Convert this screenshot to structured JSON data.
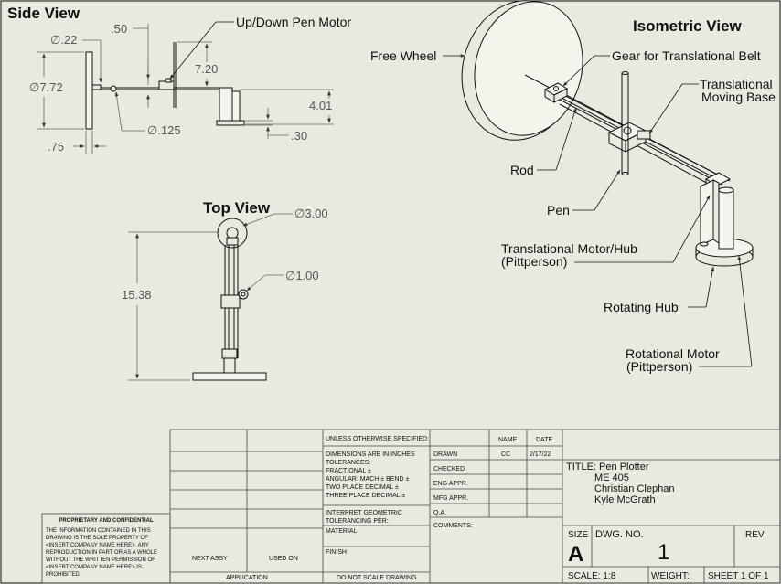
{
  "views": {
    "side": "Side View",
    "top": "Top View",
    "iso": "Isometric View"
  },
  "side_dims": {
    "d022": "∅.22",
    "d050": ".50",
    "d772": "∅7.72",
    "d720": "7.20",
    "d401": "4.01",
    "d0125": "∅.125",
    "d075": ".75",
    "d030": ".30"
  },
  "top_dims": {
    "d300": "∅3.00",
    "d100": "∅1.00",
    "d1538": "15.38"
  },
  "callouts": {
    "pen_motor": "Up/Down Pen Motor",
    "free_wheel": "Free Wheel",
    "gear": "Gear for Translational Belt",
    "base_1": "Translational",
    "base_2": "Moving Base",
    "rod": "Rod",
    "pen": "Pen",
    "trans_motor_1": "Translational Motor/Hub",
    "trans_motor_2": "(Pittperson)",
    "rot_hub": "Rotating Hub",
    "rot_motor_1": "Rotational Motor",
    "rot_motor_2": "(Pittperson)"
  },
  "title_block": {
    "unless": "UNLESS OTHERWISE SPECIFIED:",
    "name": "NAME",
    "date": "DATE",
    "dim_1": "DIMENSIONS ARE IN INCHES",
    "dim_2": "TOLERANCES:",
    "dim_3": "FRACTIONAL ±",
    "dim_4": "ANGULAR: MACH ±   BEND ±",
    "dim_5": "TWO PLACE DECIMAL   ±",
    "dim_6": "THREE PLACE DECIMAL  ±",
    "drawn": "DRAWN",
    "drawn_by": "CC",
    "drawn_date": "2/17/22",
    "checked": "CHECKED",
    "eng": "ENG APPR.",
    "mfg": "MFG APPR.",
    "qa": "Q.A.",
    "comments": "COMMENTS:",
    "interp_1": "INTERPRET GEOMETRIC",
    "interp_2": "TOLERANCING PER:",
    "material": "MATERIAL",
    "finish": "FINISH",
    "next_assy": "NEXT ASSY",
    "used_on": "USED ON",
    "application": "APPLICATION",
    "do_not_scale": "DO NOT SCALE DRAWING",
    "title_1": "TITLE: Pen Plotter",
    "title_2": "ME 405",
    "title_3": "Christian Clephan",
    "title_4": "Kyle McGrath",
    "size_lbl": "SIZE",
    "size": "A",
    "dwg_no_lbl": "DWG.  NO.",
    "dwg_no": "1",
    "rev": "REV",
    "scale": "SCALE: 1:8",
    "weight": "WEIGHT:",
    "sheet": "SHEET 1 OF 1",
    "prop_hdr": "PROPRIETARY AND CONFIDENTIAL",
    "prop_1": "THE INFORMATION CONTAINED IN THIS",
    "prop_2": "DRAWING IS THE SOLE PROPERTY OF",
    "prop_3": "<INSERT COMPANY NAME HERE>.  ANY",
    "prop_4": "REPRODUCTION IN PART OR AS A WHOLE",
    "prop_5": "WITHOUT THE WRITTEN PERMISSION OF",
    "prop_6": "<INSERT COMPANY NAME HERE> IS",
    "prop_7": "PROHIBITED."
  },
  "colors": {
    "paper": "#e9e9e0",
    "ink": "#111111",
    "dimension": "#555555"
  }
}
